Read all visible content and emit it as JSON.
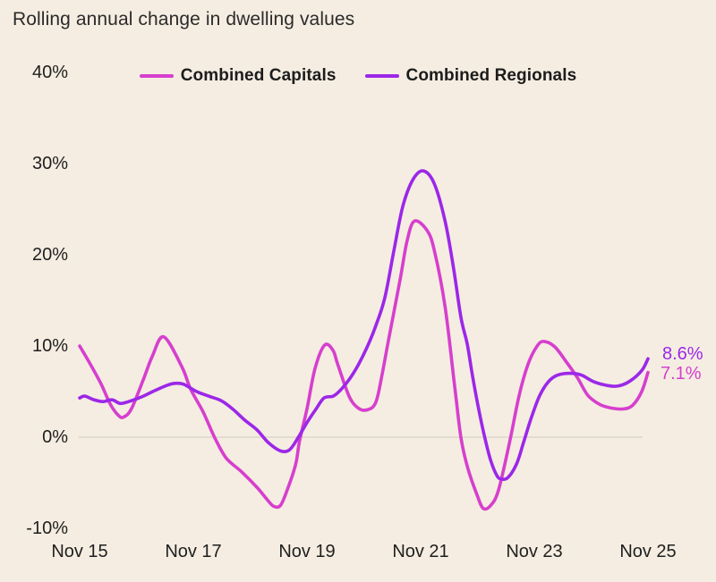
{
  "title": "Rolling annual change in dwelling values",
  "colors": {
    "background": "#f5ede1",
    "capitals": "#d63fce",
    "regionals": "#9c27e8",
    "zero_line": "#d8d1c5",
    "text": "#1f1f1f"
  },
  "chart_data": {
    "type": "line",
    "title": "Rolling annual change in dwelling values",
    "xlabel": "",
    "ylabel": "",
    "x_tick_labels": [
      "Nov 15",
      "Nov 17",
      "Nov 19",
      "Nov 21",
      "Nov 23",
      "Nov 25"
    ],
    "x_tick_years": [
      0,
      2,
      4,
      6,
      8,
      10
    ],
    "y_tick_labels": [
      "40%",
      "30%",
      "20%",
      "10%",
      "0%",
      "-10%"
    ],
    "y_tick_values": [
      40,
      30,
      20,
      10,
      0,
      -10
    ],
    "ylim": [
      -10,
      40
    ],
    "x_range_years": [
      0,
      10
    ],
    "grid": "zero-line-only",
    "legend_position": "top-center",
    "series": [
      {
        "name": "Combined Capitals",
        "color": "#d63fce",
        "end_label": "7.1%",
        "points": [
          [
            0.0,
            10.0
          ],
          [
            0.17,
            8.2
          ],
          [
            0.38,
            5.8
          ],
          [
            0.54,
            3.6
          ],
          [
            0.68,
            2.4
          ],
          [
            0.77,
            2.2
          ],
          [
            0.91,
            3.1
          ],
          [
            1.12,
            6.3
          ],
          [
            1.28,
            8.9
          ],
          [
            1.48,
            11.0
          ],
          [
            1.8,
            7.7
          ],
          [
            1.95,
            5.3
          ],
          [
            2.17,
            2.8
          ],
          [
            2.38,
            -0.1
          ],
          [
            2.58,
            -2.3
          ],
          [
            2.85,
            -3.8
          ],
          [
            3.12,
            -5.5
          ],
          [
            3.32,
            -7.0
          ],
          [
            3.42,
            -7.6
          ],
          [
            3.53,
            -7.5
          ],
          [
            3.64,
            -6.0
          ],
          [
            3.8,
            -3.0
          ],
          [
            3.87,
            -0.4
          ],
          [
            4.0,
            3.1
          ],
          [
            4.14,
            7.5
          ],
          [
            4.31,
            10.1
          ],
          [
            4.46,
            9.5
          ],
          [
            4.54,
            8.0
          ],
          [
            4.74,
            4.5
          ],
          [
            4.9,
            3.2
          ],
          [
            5.06,
            3.0
          ],
          [
            5.21,
            3.8
          ],
          [
            5.32,
            6.8
          ],
          [
            5.43,
            10.5
          ],
          [
            5.64,
            17.3
          ],
          [
            5.76,
            21.5
          ],
          [
            5.89,
            23.7
          ],
          [
            6.11,
            22.7
          ],
          [
            6.24,
            20.5
          ],
          [
            6.43,
            14.3
          ],
          [
            6.6,
            5.5
          ],
          [
            6.71,
            -0.1
          ],
          [
            6.83,
            -3.4
          ],
          [
            6.99,
            -6.3
          ],
          [
            7.1,
            -7.8
          ],
          [
            7.23,
            -7.5
          ],
          [
            7.37,
            -5.8
          ],
          [
            7.57,
            -0.4
          ],
          [
            7.73,
            4.5
          ],
          [
            7.89,
            8.0
          ],
          [
            8.05,
            10.0
          ],
          [
            8.17,
            10.5
          ],
          [
            8.36,
            9.9
          ],
          [
            8.57,
            8.2
          ],
          [
            8.76,
            6.5
          ],
          [
            8.94,
            4.6
          ],
          [
            9.15,
            3.6
          ],
          [
            9.35,
            3.2
          ],
          [
            9.57,
            3.1
          ],
          [
            9.73,
            3.5
          ],
          [
            9.89,
            5.0
          ],
          [
            10.0,
            7.1
          ]
        ]
      },
      {
        "name": "Combined Regionals",
        "color": "#9c27e8",
        "end_label": "8.6%",
        "points": [
          [
            0.0,
            4.3
          ],
          [
            0.09,
            4.5
          ],
          [
            0.25,
            4.1
          ],
          [
            0.41,
            3.9
          ],
          [
            0.57,
            4.1
          ],
          [
            0.72,
            3.7
          ],
          [
            0.91,
            4.0
          ],
          [
            1.12,
            4.5
          ],
          [
            1.32,
            5.1
          ],
          [
            1.54,
            5.7
          ],
          [
            1.67,
            5.9
          ],
          [
            1.83,
            5.8
          ],
          [
            2.06,
            5.0
          ],
          [
            2.27,
            4.5
          ],
          [
            2.49,
            4.0
          ],
          [
            2.69,
            3.1
          ],
          [
            2.9,
            1.9
          ],
          [
            3.12,
            0.8
          ],
          [
            3.32,
            -0.6
          ],
          [
            3.53,
            -1.5
          ],
          [
            3.69,
            -1.4
          ],
          [
            3.84,
            -0.1
          ],
          [
            4.0,
            1.6
          ],
          [
            4.16,
            3.1
          ],
          [
            4.3,
            4.3
          ],
          [
            4.46,
            4.5
          ],
          [
            4.58,
            5.1
          ],
          [
            4.74,
            6.3
          ],
          [
            4.9,
            7.9
          ],
          [
            5.06,
            9.9
          ],
          [
            5.21,
            12.2
          ],
          [
            5.37,
            15.3
          ],
          [
            5.53,
            20.5
          ],
          [
            5.69,
            25.4
          ],
          [
            5.87,
            28.3
          ],
          [
            6.05,
            29.2
          ],
          [
            6.24,
            27.8
          ],
          [
            6.43,
            23.7
          ],
          [
            6.58,
            18.5
          ],
          [
            6.71,
            13.1
          ],
          [
            6.82,
            10.2
          ],
          [
            6.91,
            6.8
          ],
          [
            7.02,
            3.1
          ],
          [
            7.13,
            -0.1
          ],
          [
            7.23,
            -2.5
          ],
          [
            7.34,
            -4.2
          ],
          [
            7.42,
            -4.6
          ],
          [
            7.54,
            -4.4
          ],
          [
            7.69,
            -2.9
          ],
          [
            7.81,
            -0.6
          ],
          [
            7.94,
            2.0
          ],
          [
            8.09,
            4.5
          ],
          [
            8.25,
            6.1
          ],
          [
            8.41,
            6.8
          ],
          [
            8.63,
            7.0
          ],
          [
            8.83,
            6.8
          ],
          [
            9.04,
            6.1
          ],
          [
            9.26,
            5.7
          ],
          [
            9.46,
            5.6
          ],
          [
            9.67,
            6.1
          ],
          [
            9.89,
            7.3
          ],
          [
            10.0,
            8.6
          ]
        ]
      }
    ]
  }
}
